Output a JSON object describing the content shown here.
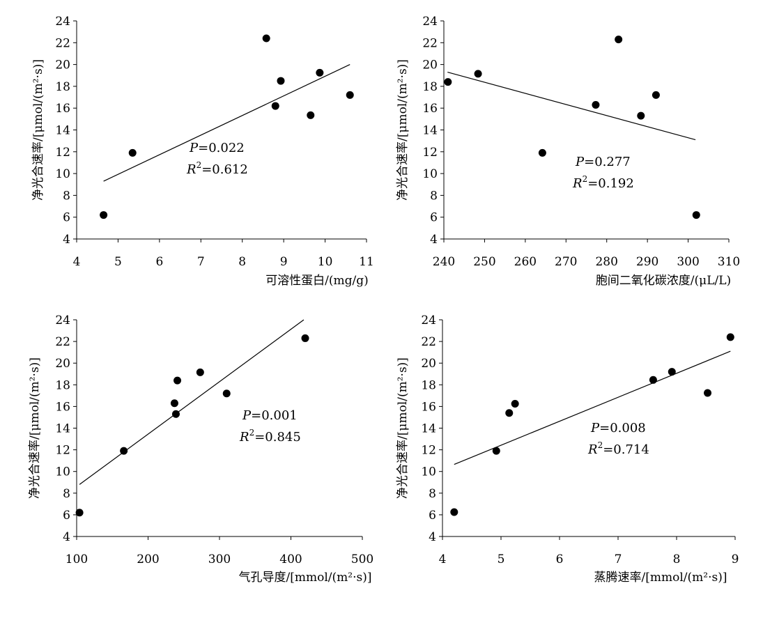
{
  "chart_data": [
    {
      "type": "scatter",
      "title": "",
      "xlabel": "可溶性蛋白/(mg/g)",
      "ylabel": "净光合速率/[μmol/(m²·s)]",
      "xlim": [
        4,
        11
      ],
      "ylim": [
        4,
        24
      ],
      "xticks": [
        4,
        5,
        6,
        7,
        8,
        9,
        10,
        11
      ],
      "yticks": [
        4,
        6,
        8,
        10,
        12,
        14,
        16,
        18,
        20,
        22,
        24
      ],
      "points": [
        {
          "x": 4.65,
          "y": 6.2
        },
        {
          "x": 5.35,
          "y": 11.9
        },
        {
          "x": 8.58,
          "y": 22.4
        },
        {
          "x": 8.8,
          "y": 16.2
        },
        {
          "x": 8.93,
          "y": 18.5
        },
        {
          "x": 9.65,
          "y": 15.35
        },
        {
          "x": 9.87,
          "y": 19.25
        },
        {
          "x": 10.6,
          "y": 17.2
        }
      ],
      "trendline": {
        "x1": 4.65,
        "y1": 9.3,
        "x2": 10.6,
        "y2": 20.0
      },
      "p_label": "P",
      "p_value": "=0.022",
      "r2_label": "R",
      "r2_sup": "2",
      "r2_value": "=0.612"
    },
    {
      "type": "scatter",
      "title": "",
      "xlabel": "胞间二氧化碳浓度/(μL/L)",
      "ylabel": "净光合速率/[μmol/(m²·s)]",
      "xlim": [
        240,
        310
      ],
      "ylim": [
        4,
        24
      ],
      "xticks": [
        240,
        250,
        260,
        270,
        280,
        290,
        300,
        310
      ],
      "yticks": [
        4,
        6,
        8,
        10,
        12,
        14,
        16,
        18,
        20,
        22,
        24
      ],
      "points": [
        {
          "x": 241.0,
          "y": 18.4
        },
        {
          "x": 248.4,
          "y": 19.15
        },
        {
          "x": 264.2,
          "y": 11.9
        },
        {
          "x": 277.3,
          "y": 16.3
        },
        {
          "x": 282.9,
          "y": 22.3
        },
        {
          "x": 288.4,
          "y": 15.3
        },
        {
          "x": 292.1,
          "y": 17.2
        },
        {
          "x": 302.0,
          "y": 6.2
        }
      ],
      "trendline": {
        "x1": 240.9,
        "y1": 19.3,
        "x2": 301.8,
        "y2": 13.1
      },
      "p_label": "P",
      "p_value": "=0.277",
      "r2_label": "R",
      "r2_sup": "2",
      "r2_value": "=0.192"
    },
    {
      "type": "scatter",
      "title": "",
      "xlabel": "气孔导度/[mmol/(m²·s)]",
      "ylabel": "净光合速率/[μmol/(m²·s)]",
      "xlim": [
        100,
        500
      ],
      "ylim": [
        4,
        24
      ],
      "xticks": [
        100,
        200,
        300,
        400,
        500
      ],
      "yticks": [
        4,
        6,
        8,
        10,
        12,
        14,
        16,
        18,
        20,
        22,
        24
      ],
      "points": [
        {
          "x": 104,
          "y": 6.2
        },
        {
          "x": 166,
          "y": 11.9
        },
        {
          "x": 237,
          "y": 16.3
        },
        {
          "x": 239,
          "y": 15.3
        },
        {
          "x": 241,
          "y": 18.4
        },
        {
          "x": 273,
          "y": 19.15
        },
        {
          "x": 310,
          "y": 17.2
        },
        {
          "x": 420,
          "y": 22.3
        }
      ],
      "trendline": {
        "x1": 104,
        "y1": 8.8,
        "x2": 418,
        "y2": 24.0
      },
      "p_label": "P",
      "p_value": "=0.001",
      "r2_label": "R",
      "r2_sup": "2",
      "r2_value": "=0.845"
    },
    {
      "type": "scatter",
      "title": "",
      "xlabel": "蒸腾速率/[mmol/(m²·s)]",
      "ylabel": "净光合速率/[μmol/(m²·s)]",
      "xlim": [
        4,
        9
      ],
      "ylim": [
        4,
        24
      ],
      "xticks": [
        4,
        5,
        6,
        7,
        8,
        9
      ],
      "yticks": [
        4,
        6,
        8,
        10,
        12,
        14,
        16,
        18,
        20,
        22,
        24
      ],
      "points": [
        {
          "x": 4.2,
          "y": 6.25
        },
        {
          "x": 4.92,
          "y": 11.9
        },
        {
          "x": 5.14,
          "y": 15.4
        },
        {
          "x": 5.24,
          "y": 16.25
        },
        {
          "x": 7.6,
          "y": 18.45
        },
        {
          "x": 7.92,
          "y": 19.2
        },
        {
          "x": 8.53,
          "y": 17.25
        },
        {
          "x": 8.92,
          "y": 22.4
        }
      ],
      "trendline": {
        "x1": 4.2,
        "y1": 10.65,
        "x2": 8.92,
        "y2": 21.1
      },
      "p_label": "P",
      "p_value": "=0.008",
      "r2_label": "R",
      "r2_sup": "2",
      "r2_value": "=0.714"
    }
  ]
}
